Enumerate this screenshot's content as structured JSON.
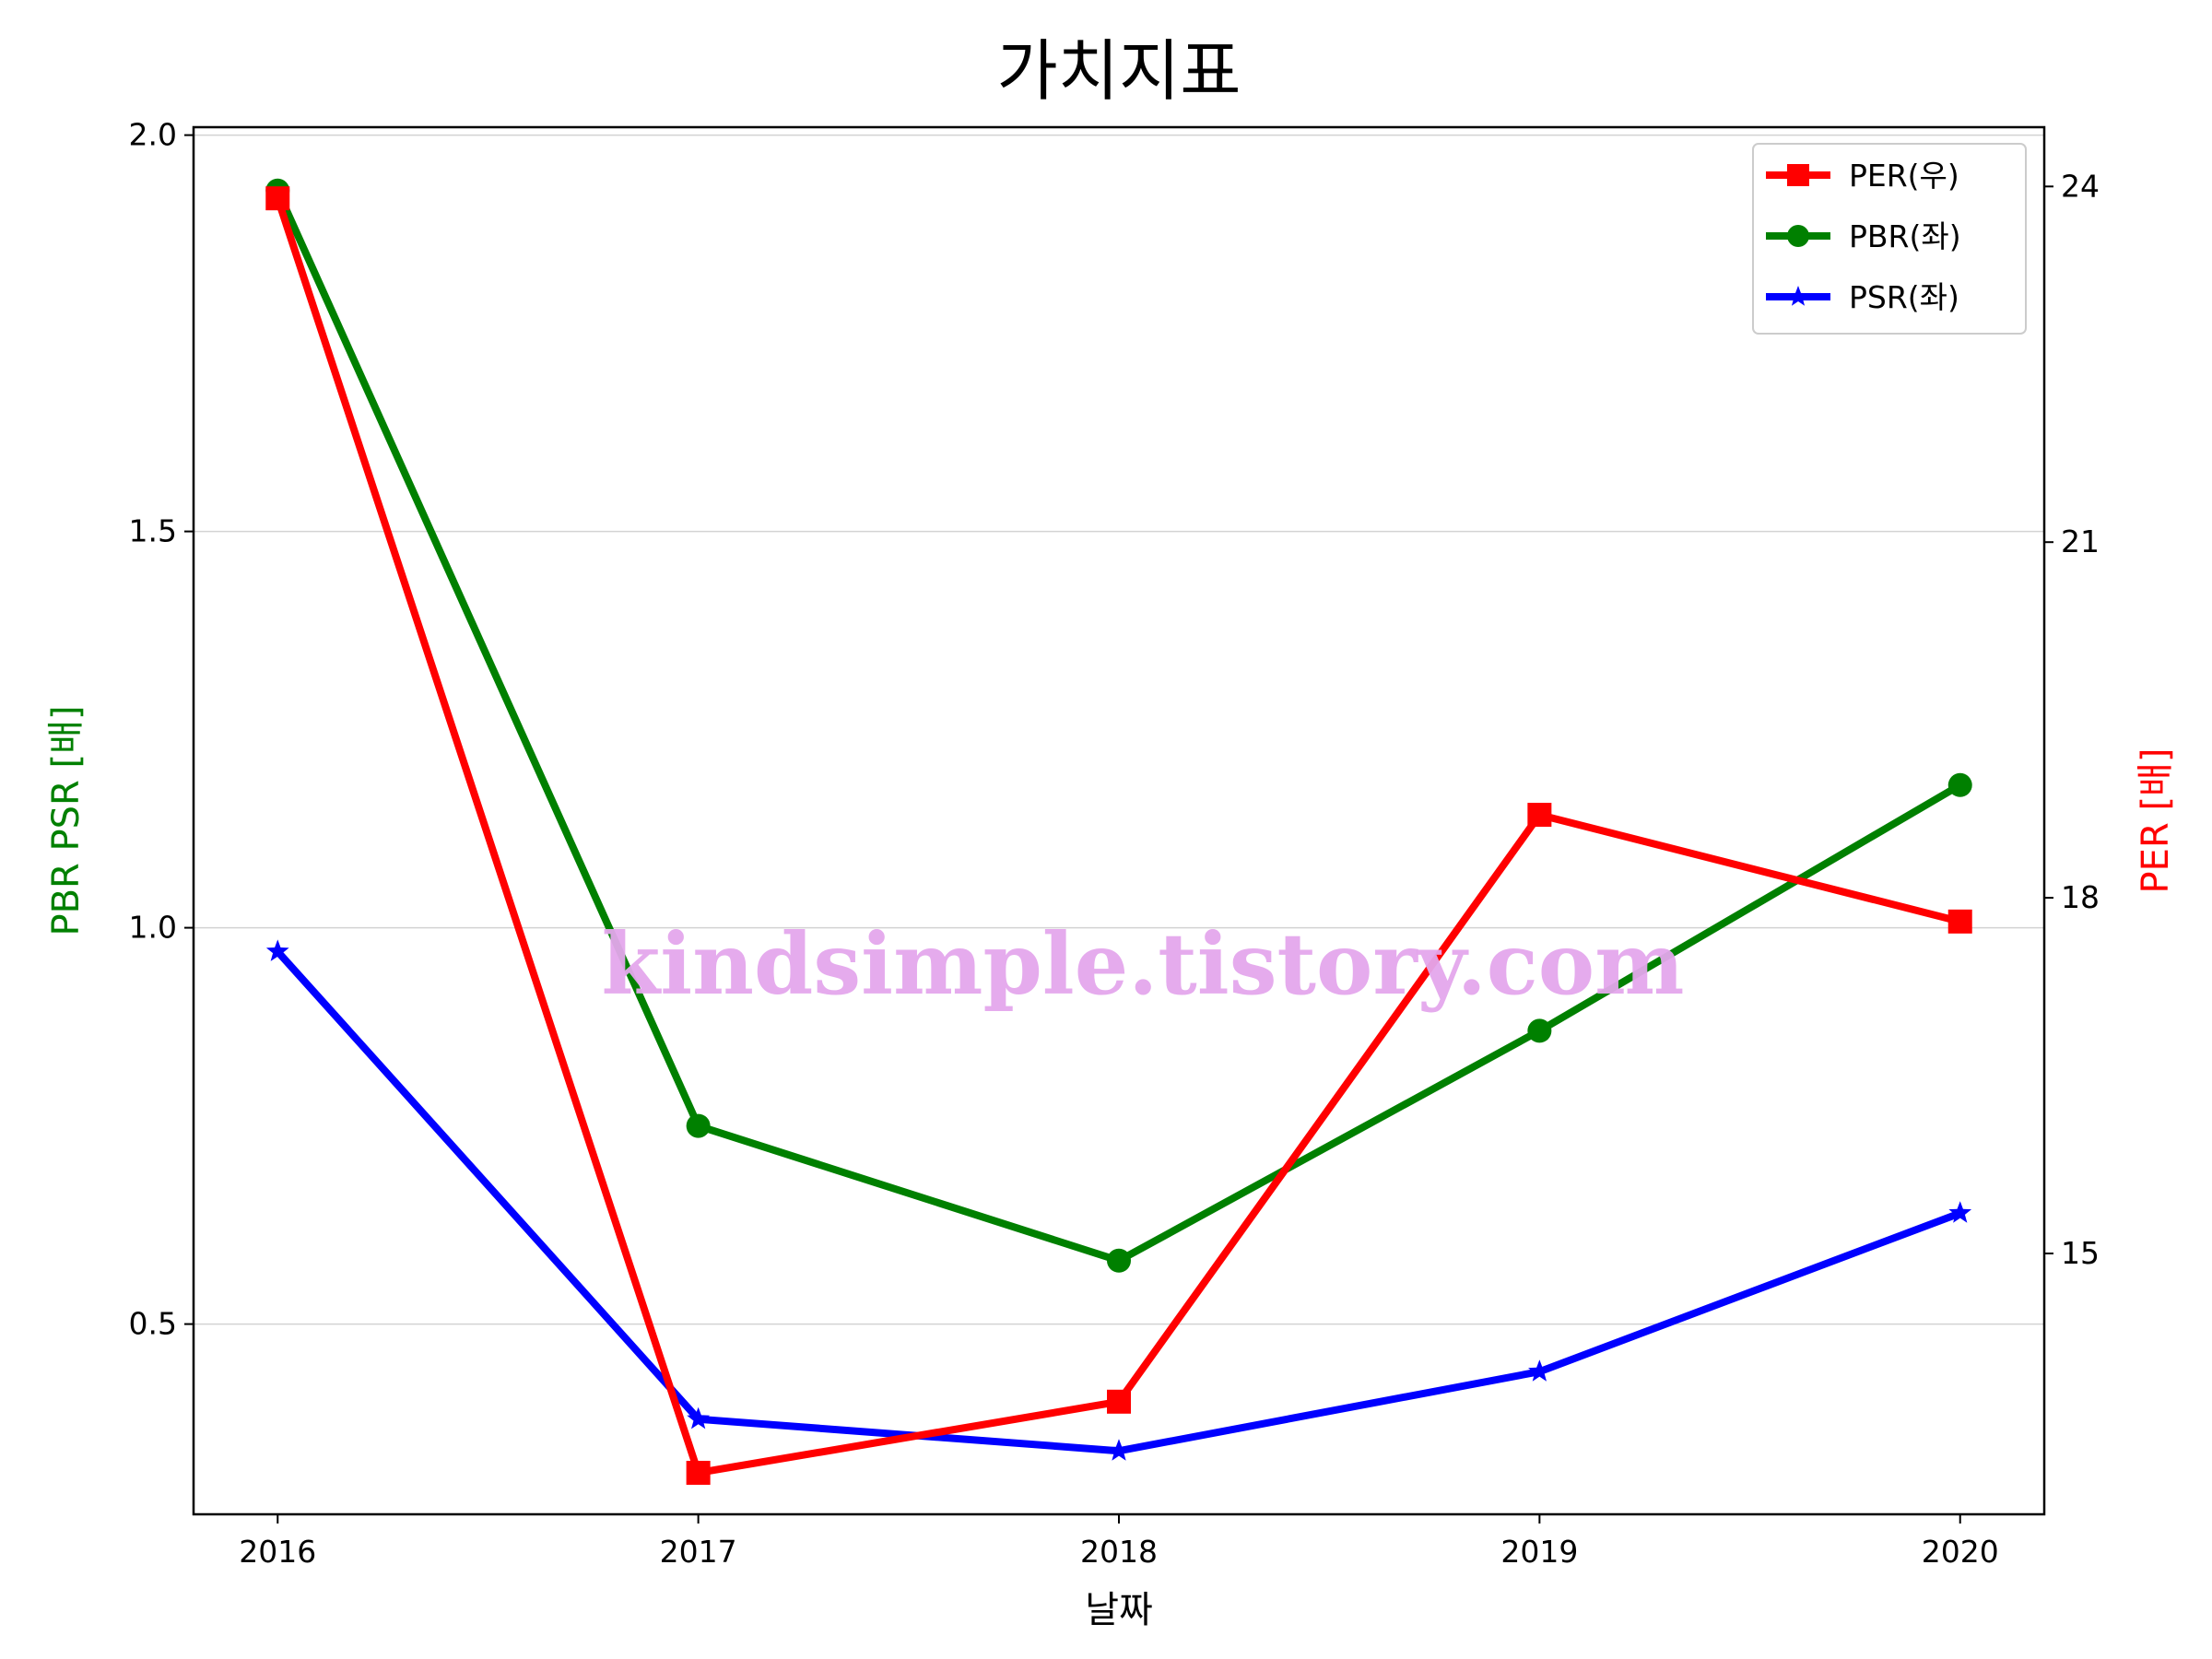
{
  "chart_data": {
    "type": "line",
    "title": "가치지표",
    "xlabel": "날짜",
    "ylabel_left": "PBR PSR [배]",
    "ylabel_right": "PER [배]",
    "categories": [
      "2016",
      "2017",
      "2018",
      "2019",
      "2020"
    ],
    "left_ylim": [
      0.26,
      2.01
    ],
    "left_yticks": [
      0.5,
      1.0,
      1.5,
      2.0
    ],
    "right_ylim": [
      12.8,
      24.5
    ],
    "right_yticks": [
      15,
      18,
      21,
      24
    ],
    "grid": "horizontal",
    "legend_position": "top-right",
    "series": [
      {
        "name": "PER(우)",
        "axis": "right",
        "color": "#ff0000",
        "marker": "square",
        "values": [
          23.9,
          13.15,
          13.75,
          18.7,
          17.8
        ]
      },
      {
        "name": "PBR(좌)",
        "axis": "left",
        "color": "#008000",
        "marker": "circle",
        "values": [
          1.93,
          0.75,
          0.58,
          0.87,
          1.18
        ]
      },
      {
        "name": "PSR(좌)",
        "axis": "left",
        "color": "#0000ff",
        "marker": "star",
        "values": [
          0.97,
          0.38,
          0.34,
          0.44,
          0.64
        ]
      }
    ],
    "watermark": "kindsimple.tistory.com",
    "watermark_color": "#e4a6ec"
  }
}
